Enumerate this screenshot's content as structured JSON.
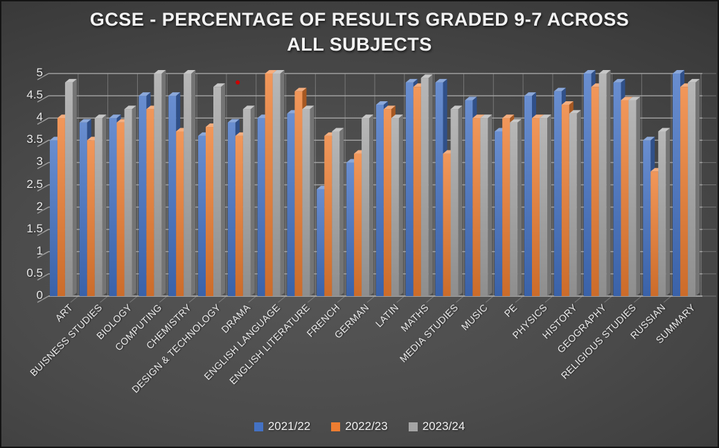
{
  "window": {
    "background_center_color": "#575757",
    "background_edge_color": "#252525",
    "border_color": "#141414",
    "text_color": "#f3f3f3",
    "gridline_color": "#a6a6a6"
  },
  "chart_data": {
    "type": "bar",
    "title": "GCSE - PERCENTAGE OF RESULTS GRADED 9-7 ACROSS ALL SUBJECTS",
    "title_lines": [
      "GCSE - PERCENTAGE OF RESULTS GRADED 9-7 ACROSS",
      "ALL SUBJECTS"
    ],
    "style": "3d-column",
    "grid": true,
    "legend_position": "bottom",
    "xlabel": "",
    "ylabel": "",
    "ylim": [
      0,
      5
    ],
    "ytick_step": 0.5,
    "yticks": [
      "0",
      "0.5",
      "1",
      "1.5",
      "2",
      "2.5",
      "3",
      "3.5",
      "4",
      "4.5",
      "5"
    ],
    "categories": [
      "ART",
      "BUISNESS STUDIES",
      "BIOLOGY",
      "COMPUTING",
      "CHEMISTRY",
      "DESIGN & TECHNOLOGY",
      "DRAMA",
      "ENGLISH LANGUAGE",
      "ENGLISH LITERATURE",
      "FRENCH",
      "GERMAN",
      "LATIN",
      "MATHS",
      "MEDIA STUDIES",
      "MUSIC",
      "PE",
      "PHYSICS",
      "HISTORY",
      "GEOGRAPHY",
      "RELIGIOUS STUDIES",
      "RUSSIAN",
      "SUMMARY"
    ],
    "series": [
      {
        "name": "2021/22",
        "color": "#4472C4",
        "values": [
          3.5,
          3.9,
          4.0,
          4.5,
          4.5,
          3.6,
          3.9,
          4.0,
          4.1,
          2.4,
          3.0,
          4.3,
          4.8,
          4.8,
          4.4,
          3.7,
          4.5,
          4.6,
          5.0,
          4.8,
          3.5,
          5.0
        ]
      },
      {
        "name": "2022/23",
        "color": "#ED7D31",
        "values": [
          4.0,
          3.5,
          3.9,
          4.2,
          3.7,
          3.8,
          3.6,
          5.0,
          4.6,
          3.6,
          3.2,
          4.2,
          4.7,
          3.2,
          4.0,
          4.0,
          4.0,
          4.3,
          4.7,
          4.4,
          2.8,
          4.7
        ]
      },
      {
        "name": "2023/24",
        "color": "#A5A5A5",
        "values": [
          4.8,
          4.0,
          4.2,
          5.0,
          5.0,
          4.7,
          4.2,
          5.0,
          4.2,
          3.7,
          4.0,
          4.0,
          4.9,
          4.2,
          4.0,
          3.9,
          4.0,
          4.1,
          5.0,
          4.4,
          3.7,
          4.8
        ]
      }
    ],
    "annotations": [
      {
        "type": "point",
        "color": "#CC0000",
        "x_frac": 0.29,
        "y_value": 4.8
      }
    ]
  }
}
